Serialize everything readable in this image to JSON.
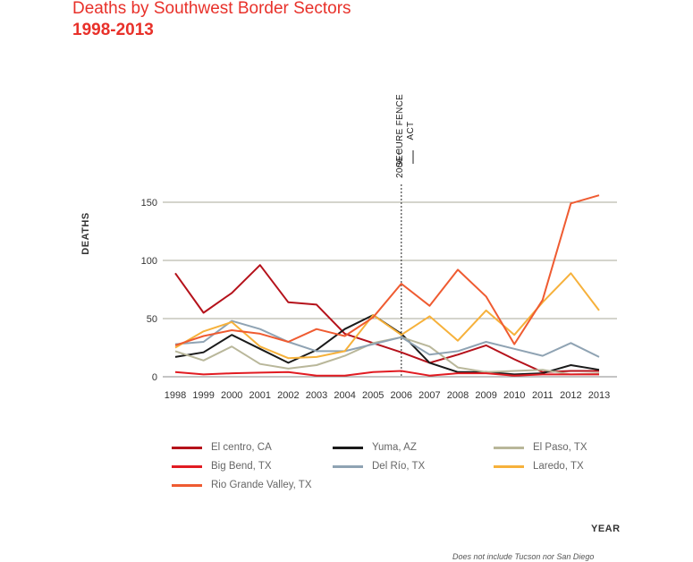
{
  "header": {
    "title": "Deaths by Southwest Border Sectors",
    "subtitle": "1998-2013"
  },
  "annotation": {
    "year": "2006",
    "line1": "SECURE FENCE",
    "line2": "ACT"
  },
  "footnote": "Does not include Tucson nor San Diego",
  "chart_data": {
    "type": "line",
    "title": "Deaths by Southwest Border Sectors",
    "subtitle": "1998-2013",
    "xlabel": "YEAR",
    "ylabel": "DEATHS",
    "x": [
      "1998",
      "1999",
      "2000",
      "2001",
      "2002",
      "2003",
      "2004",
      "2005",
      "2006",
      "2007",
      "2008",
      "2009",
      "2010",
      "2011",
      "2012",
      "2013"
    ],
    "yticks": [
      0,
      50,
      100,
      150
    ],
    "ylim": [
      0,
      160
    ],
    "grid": true,
    "legend": "bottom",
    "series": [
      {
        "name": "El centro, CA",
        "color": "#b5121b",
        "values": [
          89,
          55,
          72,
          96,
          64,
          62,
          37,
          29,
          21,
          12,
          19,
          27,
          15,
          4,
          5,
          5
        ]
      },
      {
        "name": "Yuma, AZ",
        "color": "#1a1a1a",
        "values": [
          17,
          21,
          36,
          24,
          12,
          23,
          41,
          53,
          37,
          12,
          4,
          4,
          2,
          3,
          10,
          6
        ]
      },
      {
        "name": "El Paso, TX",
        "color": "#b9b79a",
        "values": [
          22,
          14,
          26,
          11,
          7,
          10,
          18,
          29,
          34,
          26,
          8,
          4,
          5,
          6,
          2,
          3
        ]
      },
      {
        "name": "Big Bend, TX",
        "color": "#e11b22",
        "values": [
          4,
          2,
          3,
          3.5,
          4,
          1,
          1,
          4,
          5,
          1,
          3,
          3,
          1,
          2,
          2,
          2
        ]
      },
      {
        "name": "Del Río, TX",
        "color": "#8fa3b3",
        "values": [
          28,
          30,
          48,
          41,
          30,
          22,
          22,
          28,
          34,
          19,
          22,
          30,
          24,
          18,
          29,
          17
        ]
      },
      {
        "name": "Laredo, TX",
        "color": "#f6b13b",
        "values": [
          25,
          39,
          47,
          26,
          16,
          17,
          22,
          53,
          36,
          52,
          31,
          57,
          36,
          64,
          89,
          57
        ]
      },
      {
        "name": "Rio Grande Valley, TX",
        "color": "#ef5b31",
        "values": [
          27,
          35,
          40,
          37,
          30,
          41,
          35,
          51,
          80,
          61,
          92,
          69,
          28,
          66,
          149,
          156
        ]
      }
    ]
  }
}
